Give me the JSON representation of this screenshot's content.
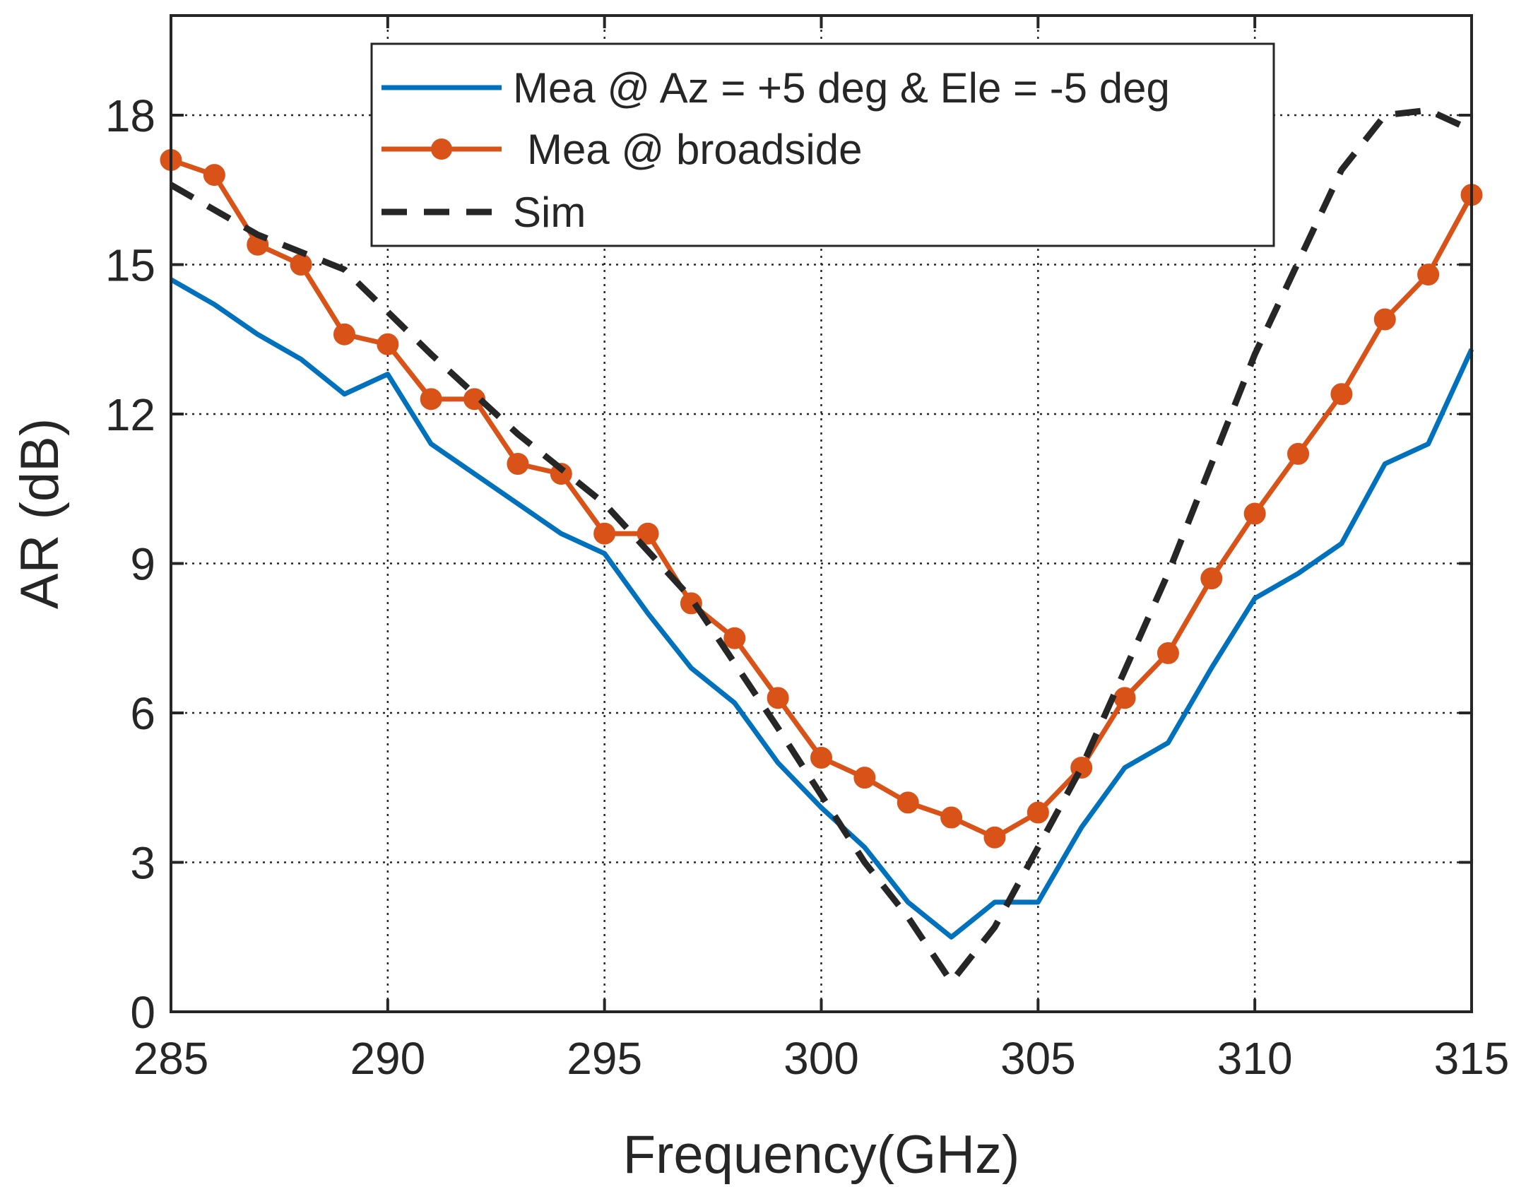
{
  "chart_data": {
    "type": "line",
    "title": "",
    "xlabel": "Frequency(GHz)",
    "ylabel": "AR (dB)",
    "xlim": [
      285,
      315
    ],
    "ylim": [
      0,
      20
    ],
    "xticks": [
      285,
      290,
      295,
      300,
      305,
      310,
      315
    ],
    "yticks": [
      0,
      3,
      6,
      9,
      12,
      15,
      18
    ],
    "grid": true,
    "legend_position": "top",
    "series": [
      {
        "name": "Mea @ Az = +5 deg & Ele = -5 deg",
        "color": "#0072BD",
        "style": "solid",
        "marker": "none",
        "x": [
          285,
          286,
          287,
          288,
          289,
          290,
          291,
          292,
          293,
          294,
          295,
          296,
          297,
          298,
          299,
          300,
          301,
          302,
          303,
          304,
          305,
          306,
          307,
          308,
          309,
          310,
          311,
          312,
          313,
          314,
          315
        ],
        "y": [
          14.7,
          14.2,
          13.6,
          13.1,
          12.4,
          12.8,
          11.4,
          10.8,
          10.2,
          9.6,
          9.2,
          8.0,
          6.9,
          6.2,
          5.0,
          4.1,
          3.3,
          2.2,
          1.5,
          2.2,
          2.2,
          3.7,
          4.9,
          5.4,
          6.9,
          8.3,
          8.8,
          9.4,
          11.0,
          11.4,
          13.3
        ]
      },
      {
        "name": "Mea @ broadside",
        "color": "#D95319",
        "style": "solid",
        "marker": "circle",
        "x": [
          285,
          286,
          287,
          288,
          289,
          290,
          291,
          292,
          293,
          294,
          295,
          296,
          297,
          298,
          299,
          300,
          301,
          302,
          303,
          304,
          305,
          306,
          307,
          308,
          309,
          310,
          311,
          312,
          313,
          314,
          315
        ],
        "y": [
          17.1,
          16.8,
          15.4,
          15.0,
          13.6,
          13.4,
          12.3,
          12.3,
          11.0,
          10.8,
          9.6,
          9.6,
          8.2,
          7.5,
          6.3,
          5.1,
          4.7,
          4.2,
          3.9,
          3.5,
          4.0,
          4.9,
          6.3,
          7.2,
          8.7,
          10.0,
          11.2,
          12.4,
          13.9,
          14.8,
          16.4
        ]
      },
      {
        "name": "Sim",
        "color": "#262626",
        "style": "dashed",
        "marker": "none",
        "x": [
          285,
          287,
          289,
          291,
          293,
          295,
          297,
          299,
          301,
          302,
          303,
          304,
          306,
          308,
          310,
          312,
          313,
          314,
          315
        ],
        "y": [
          16.6,
          15.6,
          14.9,
          13.2,
          11.6,
          10.2,
          8.3,
          5.7,
          3.0,
          1.9,
          0.6,
          1.7,
          4.9,
          8.8,
          13.2,
          16.9,
          18.0,
          18.1,
          17.7
        ]
      }
    ]
  }
}
